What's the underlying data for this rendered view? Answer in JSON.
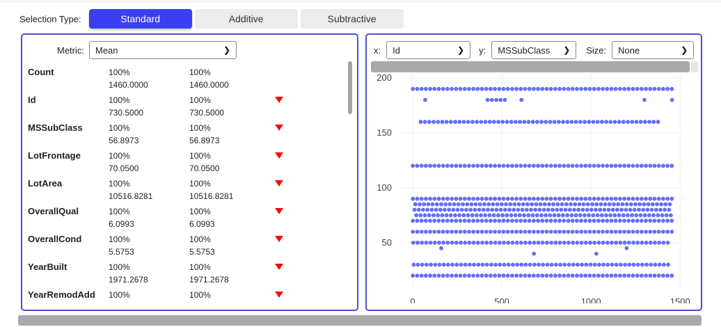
{
  "selection": {
    "label": "Selection Type:",
    "options": [
      "Standard",
      "Additive",
      "Subtractive"
    ],
    "active": "Standard",
    "accent": "#3b3ff0"
  },
  "stats": {
    "metric_label": "Metric:",
    "metric_value": "Mean",
    "rows": [
      {
        "name": "Count",
        "pct1": "100%",
        "val1": "1460.0000",
        "pct2": "100%",
        "val2": "1460.0000",
        "arrow": false
      },
      {
        "name": "Id",
        "pct1": "100%",
        "val1": "730.5000",
        "pct2": "100%",
        "val2": "730.5000",
        "arrow": true
      },
      {
        "name": "MSSubClass",
        "pct1": "100%",
        "val1": "56.8973",
        "pct2": "100%",
        "val2": "56.8973",
        "arrow": true
      },
      {
        "name": "LotFrontage",
        "pct1": "100%",
        "val1": "70.0500",
        "pct2": "100%",
        "val2": "70.0500",
        "arrow": true
      },
      {
        "name": "LotArea",
        "pct1": "100%",
        "val1": "10516.8281",
        "pct2": "100%",
        "val2": "10516.8281",
        "arrow": true
      },
      {
        "name": "OverallQual",
        "pct1": "100%",
        "val1": "6.0993",
        "pct2": "100%",
        "val2": "6.0993",
        "arrow": true
      },
      {
        "name": "OverallCond",
        "pct1": "100%",
        "val1": "5.5753",
        "pct2": "100%",
        "val2": "5.5753",
        "arrow": true
      },
      {
        "name": "YearBuilt",
        "pct1": "100%",
        "val1": "1971.2678",
        "pct2": "100%",
        "val2": "1971.2678",
        "arrow": true
      },
      {
        "name": "YearRemodAdd",
        "pct1": "100%",
        "val1": "",
        "pct2": "100%",
        "val2": "",
        "arrow": true
      }
    ],
    "arrow_color": "#ee1111",
    "arrow_icon": "triangle-down-icon"
  },
  "plot": {
    "x_label": "x:",
    "x_value": "Id",
    "y_label": "y:",
    "y_value": "MSSubClass",
    "size_label": "Size:",
    "size_value": "None",
    "point_color": "#636efa"
  },
  "chart_data": {
    "type": "scatter",
    "x_field": "Id",
    "y_field": "MSSubClass",
    "xlim": [
      0,
      1460
    ],
    "ylim": [
      10,
      200
    ],
    "x_ticks": [
      0,
      500,
      1000,
      1500
    ],
    "y_ticks": [
      50,
      100,
      150,
      200
    ],
    "grid": true,
    "series": [
      {
        "y": 20,
        "x": [
          [
            1,
            1460
          ]
        ]
      },
      {
        "y": 30,
        "x": [
          [
            5,
            1455
          ]
        ]
      },
      {
        "y": 40,
        "x": [
          [
            680,
            700
          ],
          [
            1030,
            1050
          ]
        ]
      },
      {
        "y": 45,
        "x": [
          [
            160,
            180
          ],
          [
            1200,
            1215
          ]
        ]
      },
      {
        "y": 50,
        "x": [
          [
            3,
            1455
          ]
        ]
      },
      {
        "y": 60,
        "x": [
          [
            1,
            1460
          ]
        ]
      },
      {
        "y": 70,
        "x": [
          [
            1,
            1460
          ]
        ]
      },
      {
        "y": 75,
        "x": [
          [
            20,
            1450
          ]
        ]
      },
      {
        "y": 80,
        "x": [
          [
            10,
            1455
          ]
        ]
      },
      {
        "y": 85,
        "x": [
          [
            15,
            1450
          ]
        ]
      },
      {
        "y": 90,
        "x": [
          [
            1,
            1460
          ]
        ]
      },
      {
        "y": 120,
        "x": [
          [
            1,
            1460
          ]
        ]
      },
      {
        "y": 160,
        "x": [
          [
            45,
            1380
          ]
        ]
      },
      {
        "y": 180,
        "x": [
          [
            70,
            80
          ],
          [
            420,
            520
          ],
          [
            610,
            620
          ],
          [
            1300,
            1310
          ],
          [
            1455,
            1460
          ]
        ]
      },
      {
        "y": 190,
        "x": [
          [
            1,
            1460
          ]
        ]
      }
    ]
  }
}
